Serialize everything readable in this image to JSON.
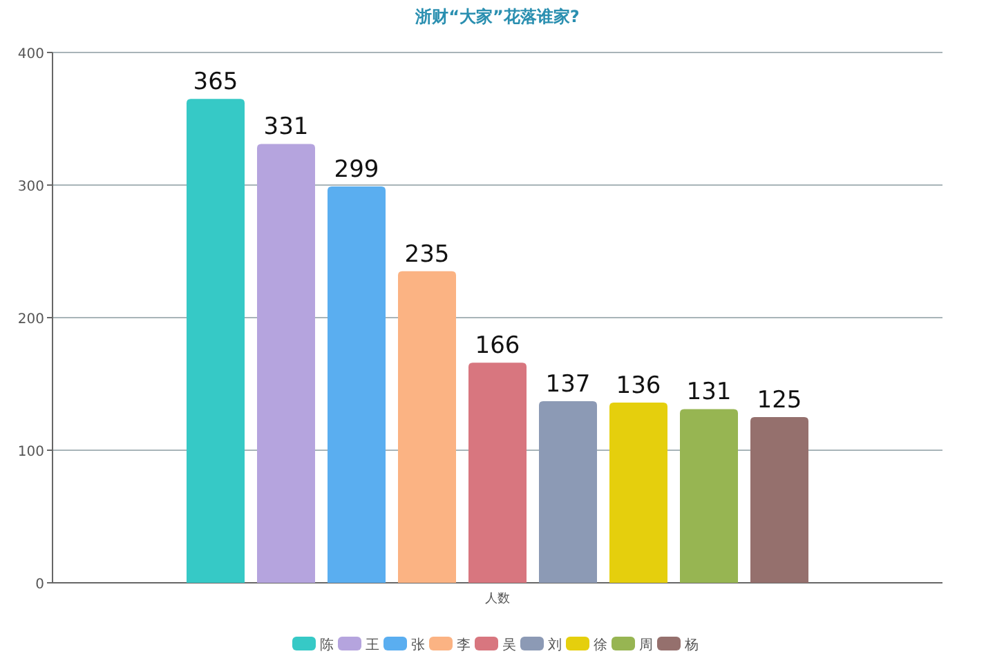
{
  "chart_data": {
    "type": "bar",
    "title": "浙财“大家”花落谁家?",
    "categories": [
      "人数"
    ],
    "series": [
      {
        "name": "陈",
        "color": "#36c9c6",
        "values": [
          365
        ]
      },
      {
        "name": "王",
        "color": "#b5a4de",
        "values": [
          331
        ]
      },
      {
        "name": "张",
        "color": "#5aaef0",
        "values": [
          299
        ]
      },
      {
        "name": "李",
        "color": "#fbb383",
        "values": [
          235
        ]
      },
      {
        "name": "吴",
        "color": "#d8767f",
        "values": [
          166
        ]
      },
      {
        "name": "刘",
        "color": "#8c9ab5",
        "values": [
          137
        ]
      },
      {
        "name": "徐",
        "color": "#e5cf0d",
        "values": [
          136
        ]
      },
      {
        "name": "周",
        "color": "#97b552",
        "values": [
          131
        ]
      },
      {
        "name": "杨",
        "color": "#95706d",
        "values": [
          125
        ]
      }
    ],
    "ylim": [
      0,
      400
    ],
    "yticks": [
      0,
      100,
      200,
      300,
      400
    ],
    "grid": "y",
    "legend": "bottom",
    "data_labels": true
  }
}
